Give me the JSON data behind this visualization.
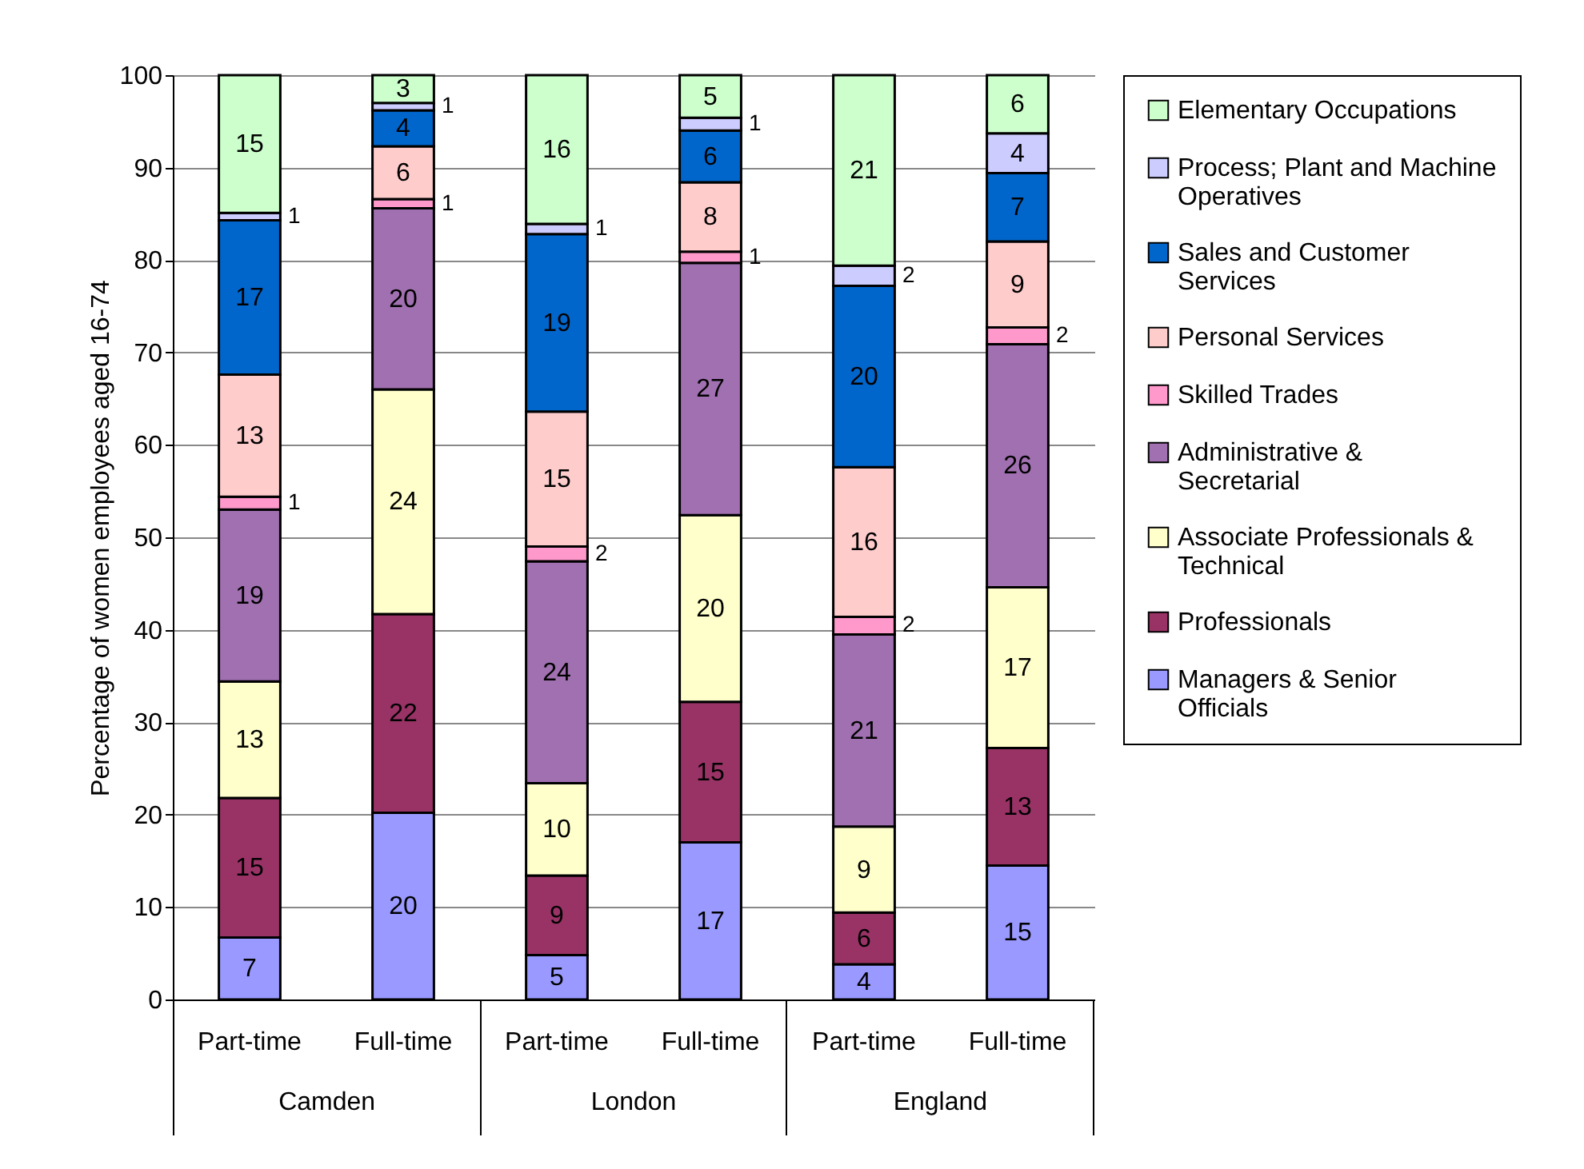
{
  "chart_data": {
    "type": "bar",
    "stacked": true,
    "ylabel": "Percentage of women employees aged 16-74",
    "categories": [
      "Part-time",
      "Full-time",
      "Part-time",
      "Full-time",
      "Part-time",
      "Full-time"
    ],
    "annotations": [
      "Camden",
      "London",
      "England"
    ],
    "ylim": [
      0,
      100
    ],
    "yticks": [
      0,
      10,
      20,
      30,
      40,
      50,
      60,
      70,
      80,
      90,
      100
    ],
    "grid": "y",
    "legend": "right",
    "series": [
      {
        "name": "Managers & Senior Officials",
        "color": "#9999ff",
        "values": [
          6.7,
          20.2,
          4.8,
          17.0,
          3.8,
          14.5
        ],
        "value_labels": [
          "7",
          "20",
          "5",
          "17",
          "4",
          "15"
        ]
      },
      {
        "name": "Professionals",
        "color": "#993366",
        "values": [
          15.1,
          21.5,
          8.6,
          15.2,
          5.6,
          12.7
        ],
        "value_labels": [
          "15",
          "22",
          "9",
          "15",
          "6",
          "13"
        ]
      },
      {
        "name": "Associate Professionals & Technical",
        "color": "#ffffcc",
        "values": [
          12.6,
          24.3,
          10.0,
          20.2,
          9.3,
          17.4
        ],
        "value_labels": [
          "13",
          "24",
          "10",
          "20",
          "9",
          "17"
        ]
      },
      {
        "name": "Administrative & Secretarial",
        "color": "#a070b0",
        "values": [
          18.6,
          19.6,
          24.0,
          27.3,
          20.8,
          26.3
        ],
        "value_labels": [
          "19",
          "20",
          "24",
          "27",
          "21",
          "26"
        ]
      },
      {
        "name": "Skilled Trades",
        "color": "#ff99cc",
        "values": [
          1.4,
          1.0,
          1.6,
          1.2,
          1.9,
          1.8
        ],
        "value_labels": [
          "1",
          "1",
          "2",
          "1",
          "2",
          "2"
        ]
      },
      {
        "name": "Personal Services",
        "color": "#ffcccc",
        "values": [
          13.2,
          5.7,
          14.6,
          7.5,
          16.2,
          9.3
        ],
        "value_labels": [
          "13",
          "6",
          "15",
          "8",
          "16",
          "9"
        ]
      },
      {
        "name": "Sales and Customer Services",
        "color": "#0066cc",
        "values": [
          16.7,
          3.9,
          19.2,
          5.6,
          19.6,
          7.4
        ],
        "value_labels": [
          "17",
          "4",
          "19",
          "6",
          "20",
          "7"
        ]
      },
      {
        "name": "Process; Plant and Machine Operatives",
        "color": "#ccccff",
        "values": [
          0.8,
          0.8,
          1.1,
          1.4,
          2.2,
          4.3
        ],
        "value_labels": [
          "1",
          "1",
          "1",
          "1",
          "2",
          "4"
        ]
      },
      {
        "name": "Elementary Occupations",
        "color": "#ccffcc",
        "values": [
          14.9,
          3.0,
          16.1,
          4.6,
          20.6,
          6.3
        ],
        "value_labels": [
          "15",
          "3",
          "16",
          "5",
          "21",
          "6"
        ]
      }
    ]
  }
}
